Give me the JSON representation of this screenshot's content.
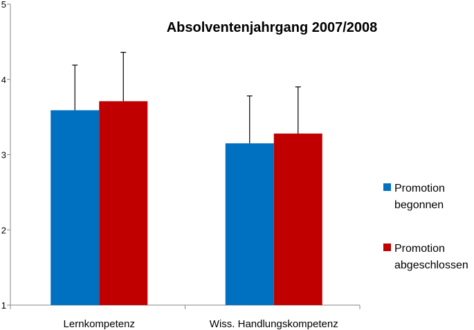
{
  "chart_data": {
    "type": "bar",
    "title": "Absolventenjahrgang 2007/2008",
    "xlabel": "",
    "ylabel": "",
    "ylim": [
      1,
      5
    ],
    "yticks": [
      1,
      2,
      3,
      4,
      5
    ],
    "categories": [
      "Lernkompetenz",
      "Wiss. Handlungskompetenz"
    ],
    "series": [
      {
        "name_lines": [
          "Promotion",
          "begonnen"
        ],
        "values": [
          3.59,
          3.15
        ],
        "error_upper": [
          0.6,
          0.63
        ],
        "color": "#0070C0"
      },
      {
        "name_lines": [
          "Promotion",
          "abgeschlossen"
        ],
        "values": [
          3.71,
          3.28
        ],
        "error_upper": [
          0.65,
          0.62
        ],
        "color": "#C00000"
      }
    ],
    "grid": false,
    "legend_position": "right"
  }
}
